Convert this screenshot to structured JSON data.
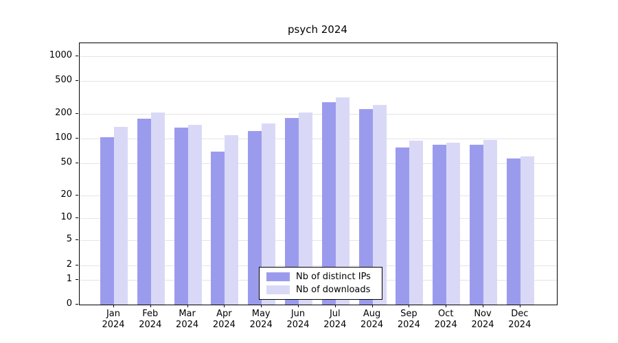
{
  "title": "psych 2024",
  "legend": {
    "items": [
      {
        "label": "Nb of distinct IPs",
        "color": "#9b9bee"
      },
      {
        "label": "Nb of downloads",
        "color": "#d9d9f7"
      }
    ]
  },
  "axes": {
    "y_tick_labels": [
      "0",
      "1",
      "2",
      "5",
      "10",
      "20",
      "50",
      "100",
      "200",
      "500",
      "1000"
    ],
    "x_months": [
      "Jan",
      "Feb",
      "Mar",
      "Apr",
      "May",
      "Jun",
      "Jul",
      "Aug",
      "Sep",
      "Oct",
      "Nov",
      "Dec"
    ],
    "x_year": "2024"
  },
  "chart_data": {
    "type": "bar",
    "title": "psych 2024",
    "categories": [
      "Jan 2024",
      "Feb 2024",
      "Mar 2024",
      "Apr 2024",
      "May 2024",
      "Jun 2024",
      "Jul 2024",
      "Aug 2024",
      "Sep 2024",
      "Oct 2024",
      "Nov 2024",
      "Dec 2024"
    ],
    "series": [
      {
        "name": "Nb of distinct IPs",
        "color": "#9b9bee",
        "values": [
          105,
          175,
          138,
          70,
          125,
          180,
          280,
          230,
          78,
          85,
          84,
          57
        ]
      },
      {
        "name": "Nb of downloads",
        "color": "#d9d9f7",
        "values": [
          140,
          210,
          148,
          110,
          155,
          210,
          320,
          260,
          95,
          90,
          96,
          61
        ]
      }
    ],
    "y_scale": "log1p",
    "y_ticks": [
      0,
      1,
      2,
      5,
      10,
      20,
      50,
      100,
      200,
      500,
      1000
    ],
    "ylim": [
      0,
      1300
    ],
    "grid": true,
    "legend_position": "inside-bottom-center",
    "xlabel": "",
    "ylabel": ""
  }
}
